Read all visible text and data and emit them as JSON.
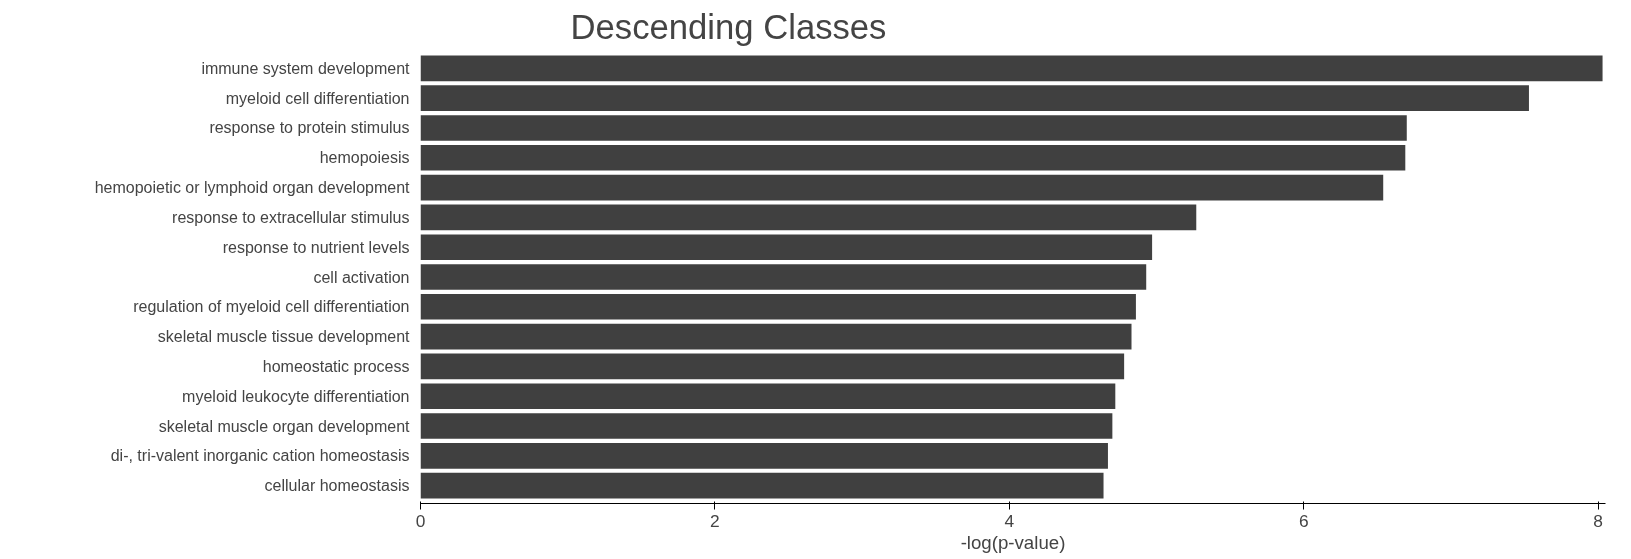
{
  "chart_data": {
    "type": "bar",
    "orientation": "horizontal",
    "title": "Descending Classes",
    "xlabel": "-log(p-value)",
    "categories": [
      "immune system development",
      "myeloid cell differentiation",
      "response to protein stimulus",
      "hemopoiesis",
      "hemopoietic or lymphoid organ development",
      "response to extracellular stimulus",
      "response to nutrient levels",
      "cell activation",
      "regulation of myeloid cell differentiation",
      "skeletal muscle tissue development",
      "homeostatic process",
      "myeloid leukocyte differentiation",
      "skeletal muscle organ development",
      "di-, tri-valent inorganic cation homeostasis",
      "cellular homeostasis"
    ],
    "values": [
      8.03,
      7.53,
      6.7,
      6.69,
      6.54,
      5.27,
      4.97,
      4.93,
      4.86,
      4.83,
      4.78,
      4.72,
      4.7,
      4.67,
      4.64
    ],
    "color": "#404040",
    "xlim": [
      0,
      8.05
    ],
    "xticks": [
      0,
      2,
      4,
      6,
      8
    ],
    "grid": false
  }
}
